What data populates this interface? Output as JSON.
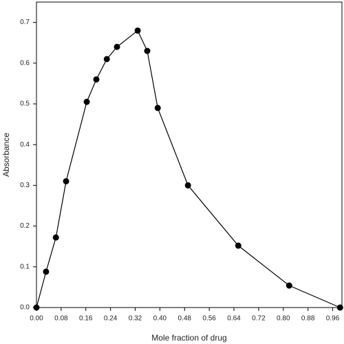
{
  "chart_data": {
    "type": "line",
    "x_label": "Mole fraction of drug",
    "y_label": "Absorbance",
    "x": [
      0,
      0.031,
      0.063,
      0.096,
      0.163,
      0.194,
      0.228,
      0.261,
      0.328,
      0.359,
      0.393,
      0.491,
      0.654,
      0.819,
      0.984
    ],
    "series": [
      {
        "color": "#000000",
        "values": [
          0,
          0.088,
          0.172,
          0.31,
          0.505,
          0.56,
          0.61,
          0.64,
          0.68,
          0.63,
          0.49,
          0.3,
          0.152,
          0.054,
          0
        ]
      }
    ],
    "xlim": [
      0,
      0.99
    ],
    "ylim": [
      0,
      0.75
    ],
    "xticks": [
      {
        "value": 0,
        "label": "0.00"
      },
      0.08,
      0.16,
      0.24,
      0.32,
      {
        "value": 0.4,
        "label": "0.40"
      },
      0.48,
      0.56,
      0.64,
      0.72,
      {
        "value": 0.8,
        "label": "0.80"
      },
      0.88,
      0.96
    ],
    "yticks": [
      {
        "value": 0,
        "label": "0.0"
      },
      0.1,
      0.2,
      0.3,
      0.4,
      0.5,
      0.6,
      0.7
    ]
  }
}
